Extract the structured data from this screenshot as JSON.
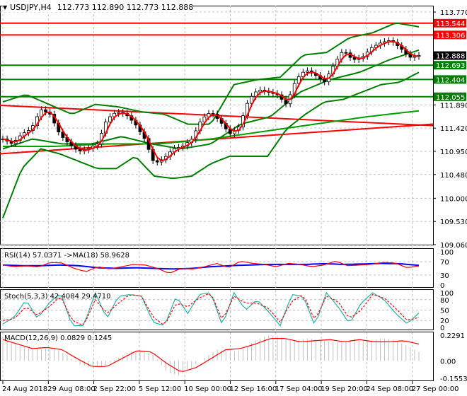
{
  "chart_data": {
    "type": "candlestick",
    "symbol": "USDJPY,H4",
    "ohlc_label": "112.773 112.890 112.773 112.888",
    "price_ticks": [
      "113.770",
      "111.890",
      "111.420",
      "110.950",
      "110.480",
      "110.000",
      "109.530",
      "109.060"
    ],
    "ylim": [
      109.06,
      113.77
    ],
    "current_price": "112.888",
    "levels": [
      {
        "label": "113.544",
        "value": 113.544,
        "color": "#ff0000"
      },
      {
        "label": "113.306",
        "value": 113.306,
        "color": "#ff0000"
      },
      {
        "label": "112.693",
        "value": 112.693,
        "color": "#008000"
      },
      {
        "label": "112.404",
        "value": 112.404,
        "color": "#008000"
      },
      {
        "label": "112.055",
        "value": 112.055,
        "color": "#008000"
      }
    ],
    "time_labels": [
      "24 Aug 2018",
      "29 Aug 08:00",
      "2 Sep 22:00",
      "5 Sep 12:00",
      "10 Sep 00:00",
      "12 Sep 16:00",
      "17 Sep 04:00",
      "19 Sep 20:00",
      "24 Sep 08:00",
      "27 Sep 00:00"
    ],
    "price_path": [
      111.2,
      111.1,
      111.3,
      111.4,
      111.8,
      111.7,
      111.3,
      111.1,
      110.95,
      111.0,
      111.1,
      111.6,
      111.75,
      111.7,
      111.5,
      111.2,
      110.7,
      110.8,
      111.0,
      111.05,
      111.2,
      111.6,
      111.75,
      111.55,
      111.3,
      111.45,
      112.0,
      112.2,
      112.15,
      112.1,
      111.9,
      112.4,
      112.6,
      112.5,
      112.35,
      112.7,
      113.0,
      112.8,
      112.85,
      113.05,
      113.15,
      113.2,
      113.05,
      112.85,
      112.89
    ],
    "bollinger_upper": [
      111.95,
      112.1,
      111.9,
      111.7,
      111.9,
      111.85,
      111.75,
      111.7,
      111.5,
      111.5,
      112.3,
      112.4,
      112.45,
      112.9,
      112.95,
      113.25,
      113.35,
      113.55,
      113.47
    ],
    "bollinger_lower": [
      109.6,
      110.6,
      111.0,
      110.9,
      110.75,
      110.6,
      110.6,
      110.85,
      110.45,
      110.4,
      110.45,
      110.7,
      110.85,
      110.85,
      110.85,
      111.4,
      111.7,
      111.95,
      112.0,
      112.15,
      112.3,
      112.35,
      112.55
    ],
    "bollinger_middle": [
      111.0,
      111.2,
      111.1,
      111.1,
      111.25,
      111.1,
      111.0,
      111.1,
      111.5,
      111.65,
      112.15,
      112.4,
      112.55,
      112.8,
      113.0
    ],
    "slow_ma": [
      111.05,
      111.05,
      111.1,
      111.1,
      111.2,
      111.35,
      111.5,
      111.65,
      111.77
    ],
    "trendlines": [
      {
        "from": 111.88,
        "to": 111.47,
        "color": "#ff0000"
      },
      {
        "from": 110.9,
        "to": 111.5,
        "color": "#ff0000"
      }
    ],
    "rsi": {
      "label": "RSI(14) 57.0371  ->MA(18) 58.9628",
      "ticks": [
        "100",
        "70",
        "30",
        "0"
      ],
      "values": [
        60,
        55,
        58,
        54,
        68,
        66,
        50,
        40,
        55,
        48,
        55,
        62,
        60,
        50,
        35,
        50,
        48,
        55,
        65,
        52,
        72,
        65,
        62,
        55,
        65,
        62,
        55,
        60,
        72,
        58,
        60,
        62,
        68,
        66,
        52,
        57
      ],
      "ma": [
        60,
        58,
        58,
        60,
        58,
        52,
        50,
        52,
        50,
        48,
        50,
        55,
        58,
        60,
        62,
        62,
        62,
        64,
        62,
        63,
        65,
        64,
        59
      ]
    },
    "stoch": {
      "label": "Stoch(5,3,3) 42.4084 29.4710",
      "ticks": [
        "100",
        "80",
        "50",
        "20",
        "0"
      ],
      "k": [
        10,
        30,
        80,
        25,
        70,
        100,
        5,
        5,
        100,
        25,
        90,
        95,
        90,
        15,
        5,
        90,
        40,
        95,
        100,
        5,
        100,
        50,
        80,
        45,
        5,
        95,
        90,
        5,
        100,
        60,
        10,
        70,
        100,
        80,
        40,
        10,
        42
      ],
      "d": [
        20,
        25,
        60,
        35,
        60,
        90,
        20,
        5,
        80,
        40,
        70,
        95,
        90,
        30,
        5,
        70,
        60,
        85,
        100,
        20,
        90,
        70,
        70,
        55,
        15,
        75,
        95,
        20,
        90,
        75,
        25,
        50,
        95,
        85,
        55,
        20,
        29
      ]
    },
    "macd": {
      "label": "MACD(12,26,9) 0.0829 0.1245",
      "ticks": [
        "0.2291",
        "0.00",
        "-0.1553"
      ],
      "hist": [
        0.19,
        0.15,
        0.12,
        0.1,
        0.12,
        0.06,
        -0.03,
        -0.06,
        -0.05,
        0.02,
        0.08,
        0.1,
        0.05,
        -0.1,
        -0.13,
        -0.06,
        0.03,
        0.1,
        0.08,
        0.1,
        0.18,
        0.23,
        0.22,
        0.18,
        0.2,
        0.19,
        0.17,
        0.17,
        0.2,
        0.18,
        0.2,
        0.19,
        0.14,
        0.08
      ],
      "signal": [
        0.19,
        0.15,
        0.11,
        0.12,
        0.1,
        0.02,
        -0.05,
        -0.05,
        0.02,
        0.09,
        0.08,
        -0.02,
        -0.1,
        -0.06,
        0.02,
        0.1,
        0.11,
        0.15,
        0.2,
        0.2,
        0.17,
        0.18,
        0.19,
        0.17,
        0.19,
        0.17,
        0.17,
        0.18,
        0.15
      ]
    }
  }
}
